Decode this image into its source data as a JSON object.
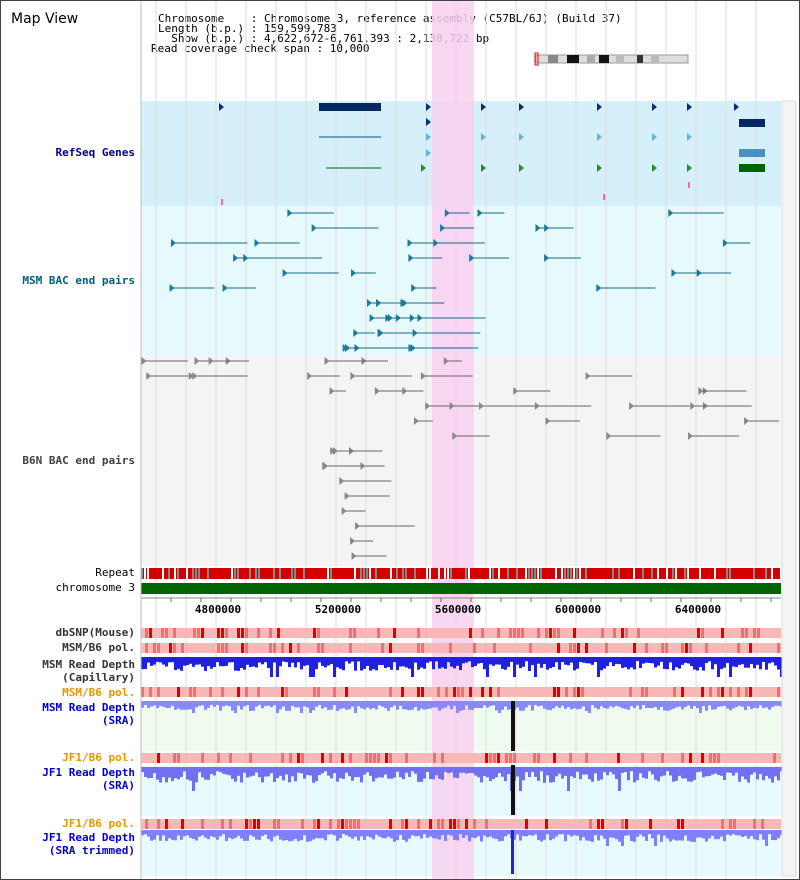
{
  "title": "Map View",
  "info": {
    "chromosome_line": "Chromosome    : Chromosome 3, reference assembly (C57BL/6J) (Build 37)",
    "length_line": "Length (b.p.) : 159,599,783",
    "show_line": "  Show (b.p.) : 4,622,672-6,761,393 : 2,138,722 bp",
    "coverage_line": "Read coverage check span : 10,000"
  },
  "tracks": {
    "refseq": {
      "label": "RefSeq Genes",
      "color": "#00008b"
    },
    "msm_bac": {
      "label": "MSM BAC end pairs",
      "color": "#006080"
    },
    "b6n_bac": {
      "label": "B6N BAC end pairs",
      "color": "#404040"
    },
    "repeat": {
      "label": "Repeat"
    },
    "chromosome": {
      "label": "chromosome 3"
    },
    "dbsnp": {
      "label": "dbSNP(Mouse)"
    },
    "msm_b6_pol": {
      "label": "MSM/B6 pol."
    },
    "msm_read_depth_cap_1": {
      "label": "MSM Read Depth"
    },
    "msm_read_depth_cap_2": {
      "label": "(Capillary)"
    },
    "msm_b6_pol_2": {
      "label": "MSM/B6 pol.",
      "color": "#e69500"
    },
    "msm_read_depth_sra_1": {
      "label": "MSM Read Depth",
      "color": "#0000cc"
    },
    "msm_read_depth_sra_2": {
      "label": "(SRA)",
      "color": "#0000cc"
    },
    "jf1_b6_pol_1": {
      "label": "JF1/B6 pol.",
      "color": "#e69500"
    },
    "jf1_read_depth_sra_1": {
      "label": "JF1 Read Depth",
      "color": "#0000cc"
    },
    "jf1_read_depth_sra_2": {
      "label": "(SRA)",
      "color": "#0000cc"
    },
    "jf1_b6_pol_2": {
      "label": "JF1/B6 pol.",
      "color": "#e69500"
    },
    "jf1_read_depth_trim_1": {
      "label": "JF1 Read Depth",
      "color": "#0000cc"
    },
    "jf1_read_depth_trim_2": {
      "label": "(SRA trimmed)",
      "color": "#0000cc"
    }
  },
  "axis": {
    "ticks": [
      "4800000",
      "5200000",
      "5600000",
      "6000000",
      "6400000"
    ],
    "range": [
      4622672,
      6761393
    ]
  },
  "highlight": {
    "start": 5595000,
    "end": 5735000,
    "color": "#f8d0f0"
  },
  "colors": {
    "refseq_bg": "#d6f0fb",
    "msm_bg": "#e6f9fb",
    "b6n_bg": "#f2f2f2",
    "repeat_red": "#d40000",
    "chromosome_green": "#006400",
    "depth_blue": "#3333ff"
  }
}
